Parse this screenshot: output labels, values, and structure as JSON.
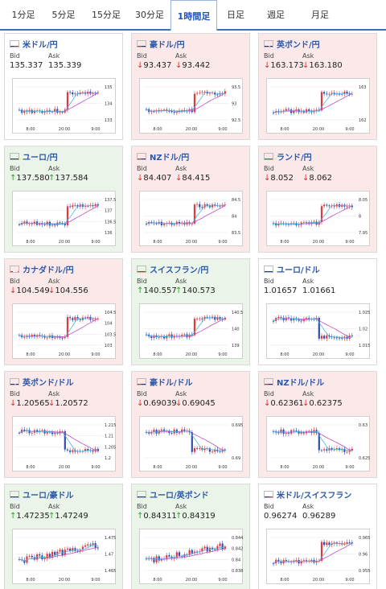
{
  "tabs": [
    {
      "label": "1分足",
      "w": 0
    },
    {
      "label": "5分足"
    },
    {
      "label": "15分足"
    },
    {
      "label": "30分足"
    },
    {
      "label": "1時間足",
      "active": true
    },
    {
      "label": "日足"
    },
    {
      "label": "週足"
    },
    {
      "label": "月足"
    }
  ],
  "common": {
    "bid_label": "Bid",
    "ask_label": "Ask",
    "x_ticks": [
      "8:00",
      "20:00",
      "9:00"
    ]
  },
  "cards": [
    {
      "pair": "米ドル/円",
      "flag": "us",
      "state": "none",
      "dir": "",
      "bid": "135.337",
      "ask": "135.339",
      "y_ticks": [
        "135",
        "134",
        "133"
      ],
      "shape": "jump"
    },
    {
      "pair": "豪ドル/円",
      "flag": "au",
      "state": "down",
      "dir": "down",
      "bid": "93.437",
      "ask": "93.442",
      "y_ticks": [
        "93.5",
        "93",
        "92.5"
      ],
      "shape": "jump"
    },
    {
      "pair": "英ポンド/円",
      "flag": "gb",
      "state": "down",
      "dir": "down",
      "bid": "163.173",
      "ask": "163.180",
      "y_ticks": [
        "163",
        "162"
      ],
      "shape": "jump"
    },
    {
      "pair": "ユーロ/円",
      "flag": "eu",
      "state": "up",
      "dir": "up",
      "bid": "137.580",
      "ask": "137.584",
      "y_ticks": [
        "137.5",
        "137",
        "136.5",
        "136"
      ],
      "shape": "jump"
    },
    {
      "pair": "NZドル/円",
      "flag": "nz",
      "state": "down",
      "dir": "down",
      "bid": "84.407",
      "ask": "84.415",
      "y_ticks": [
        "84.5",
        "84",
        "83.5"
      ],
      "shape": "jump"
    },
    {
      "pair": "ランド/円",
      "flag": "za",
      "state": "down",
      "dir": "down",
      "bid": "8.052",
      "ask": "8.062",
      "y_ticks": [
        "8.05",
        "8",
        "7.95"
      ],
      "shape": "jump"
    },
    {
      "pair": "カナダドル/円",
      "flag": "ca",
      "state": "down",
      "dir": "down",
      "bid": "104.549",
      "ask": "104.556",
      "y_ticks": [
        "104.5",
        "104",
        "103.5",
        "103"
      ],
      "shape": "jump"
    },
    {
      "pair": "スイスフラン/円",
      "flag": "ch",
      "state": "up",
      "dir": "up",
      "bid": "140.557",
      "ask": "140.573",
      "y_ticks": [
        "140.5",
        "140",
        "139"
      ],
      "shape": "jump"
    },
    {
      "pair": "ユーロ/ドル",
      "flag": "eu",
      "state": "none",
      "dir": "",
      "bid": "1.01657",
      "ask": "1.01661",
      "y_ticks": [
        "1.025",
        "1.02",
        "1.015"
      ],
      "shape": "drop"
    },
    {
      "pair": "英ポンド/ドル",
      "flag": "gb",
      "state": "down",
      "dir": "down",
      "bid": "1.20565",
      "ask": "1.20572",
      "y_ticks": [
        "1.215",
        "1.21",
        "1.205",
        "1.2"
      ],
      "shape": "drop"
    },
    {
      "pair": "豪ドル/ドル",
      "flag": "au",
      "state": "down",
      "dir": "down",
      "bid": "0.69039",
      "ask": "0.69045",
      "y_ticks": [
        "0.695",
        "0.69"
      ],
      "shape": "drop"
    },
    {
      "pair": "NZドル/ドル",
      "flag": "nz",
      "state": "down",
      "dir": "down",
      "bid": "0.62361",
      "ask": "0.62375",
      "y_ticks": [
        "0.63",
        "0.625"
      ],
      "shape": "drop"
    },
    {
      "pair": "ユーロ/豪ドル",
      "flag": "eu",
      "state": "up",
      "dir": "up",
      "bid": "1.47235",
      "ask": "1.47249",
      "y_ticks": [
        "1.475",
        "1.47",
        "1.465"
      ],
      "shape": "rise"
    },
    {
      "pair": "ユーロ/英ポンド",
      "flag": "eu",
      "state": "up",
      "dir": "up",
      "bid": "0.84311",
      "ask": "0.84319",
      "y_ticks": [
        "0.844",
        "0.842",
        "0.84",
        "0.838"
      ],
      "shape": "rise"
    },
    {
      "pair": "米ドル/スイスフラン",
      "flag": "us",
      "state": "none",
      "dir": "",
      "bid": "0.96274",
      "ask": "0.96289",
      "y_ticks": [
        "0.965",
        "0.96",
        "0.955"
      ],
      "shape": "jump"
    }
  ]
}
